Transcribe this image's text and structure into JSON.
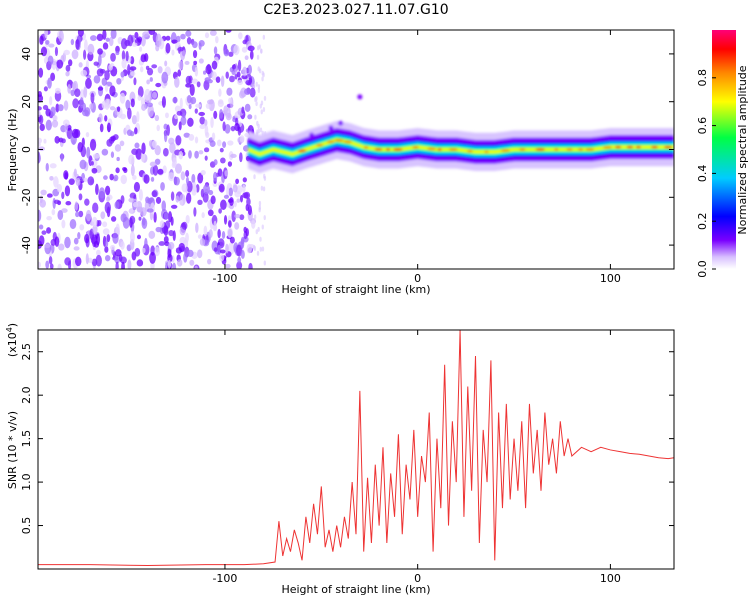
{
  "title": "C2E3.2023.027.11.07.G10",
  "chart_data": [
    {
      "type": "heatmap",
      "xlabel": "Height of straight line (km)",
      "ylabel": "Frequency (Hz)",
      "xlim": [
        -197,
        133
      ],
      "ylim": [
        -50,
        50
      ],
      "x_ticks": [
        -100,
        0,
        100
      ],
      "x_tick_labels": [
        "-100",
        "0",
        "100"
      ],
      "y_ticks": [
        -40,
        -20,
        0,
        20,
        40
      ],
      "y_tick_labels": [
        "-40",
        "-20",
        "0",
        "20",
        "40"
      ],
      "colorbar": {
        "label": "Normalized spectral amplitude",
        "range": [
          0,
          1
        ],
        "ticks": [
          0.0,
          0.2,
          0.4,
          0.6,
          0.8
        ],
        "tick_labels": [
          "0.0",
          "0.2",
          "0.4",
          "0.6",
          "0.8"
        ]
      },
      "ridge": {
        "x": [
          -88,
          -82,
          -75,
          -70,
          -65,
          -58,
          -50,
          -42,
          -35,
          -28,
          -20,
          -10,
          0,
          10,
          20,
          30,
          40,
          50,
          60,
          70,
          80,
          90,
          100,
          110,
          120,
          133
        ],
        "freq": [
          0,
          -2,
          0,
          -1,
          -2,
          0,
          2,
          4,
          3,
          1,
          0,
          0,
          1,
          0,
          0,
          -1,
          -1,
          0,
          0,
          0,
          0,
          0,
          1,
          1,
          1,
          1
        ]
      },
      "noise_region_x": [
        -197,
        -85
      ],
      "colors": [
        "#ffffff",
        "#e8d8ff",
        "#b088ff",
        "#6a00ff",
        "#0000ff",
        "#00ccff",
        "#00ff66",
        "#ffff00",
        "#ff8800",
        "#ff0000",
        "#ff0066"
      ]
    },
    {
      "type": "line",
      "xlabel": "Height of straight line (km)",
      "ylabel": "SNR (10 * v/v)",
      "y_scale_label": "(x10",
      "y_scale_exp": "4",
      "xlim": [
        -197,
        133
      ],
      "ylim": [
        0,
        2.75
      ],
      "x_ticks": [
        -100,
        0,
        100
      ],
      "x_tick_labels": [
        "-100",
        "0",
        "100"
      ],
      "y_ticks": [
        0.5,
        1.0,
        1.5,
        2.0,
        2.5
      ],
      "y_tick_labels": [
        "0.5",
        "1.0",
        "1.5",
        "2.0",
        "2.5"
      ],
      "color": "#ee3333",
      "series": [
        {
          "x": [
            -197,
            -170,
            -140,
            -110,
            -90,
            -80,
            -74,
            -72,
            -70,
            -68,
            -66,
            -64,
            -62,
            -60,
            -58,
            -56,
            -54,
            -52,
            -50,
            -48,
            -46,
            -44,
            -42,
            -40,
            -38,
            -36,
            -34,
            -32,
            -30,
            -28,
            -26,
            -24,
            -22,
            -20,
            -18,
            -16,
            -14,
            -12,
            -10,
            -8,
            -6,
            -4,
            -2,
            0,
            2,
            4,
            6,
            8,
            10,
            12,
            14,
            16,
            18,
            20,
            22,
            24,
            26,
            28,
            30,
            32,
            34,
            36,
            38,
            40,
            42,
            44,
            46,
            48,
            50,
            52,
            54,
            56,
            58,
            60,
            62,
            64,
            66,
            68,
            70,
            72,
            74,
            76,
            78,
            80,
            85,
            90,
            95,
            100,
            105,
            110,
            115,
            120,
            125,
            130,
            133
          ],
          "y": [
            0.05,
            0.05,
            0.04,
            0.05,
            0.05,
            0.06,
            0.08,
            0.55,
            0.15,
            0.35,
            0.2,
            0.45,
            0.3,
            0.1,
            0.6,
            0.3,
            0.75,
            0.4,
            0.95,
            0.25,
            0.45,
            0.2,
            0.5,
            0.25,
            0.6,
            0.35,
            1.0,
            0.4,
            2.05,
            0.2,
            1.05,
            0.3,
            1.2,
            0.5,
            1.4,
            0.3,
            1.1,
            0.6,
            1.55,
            0.4,
            1.2,
            0.8,
            1.6,
            0.6,
            1.3,
            1.0,
            1.8,
            0.2,
            1.5,
            0.7,
            2.35,
            0.5,
            1.7,
            1.0,
            2.75,
            0.6,
            2.1,
            0.9,
            2.45,
            0.3,
            1.6,
            1.0,
            2.4,
            0.1,
            1.8,
            0.7,
            1.9,
            0.8,
            1.5,
            0.9,
            1.7,
            0.7,
            1.9,
            1.1,
            1.6,
            0.9,
            1.8,
            1.2,
            1.5,
            1.1,
            1.7,
            1.3,
            1.5,
            1.3,
            1.4,
            1.35,
            1.4,
            1.37,
            1.35,
            1.33,
            1.32,
            1.3,
            1.28,
            1.27,
            1.28
          ]
        }
      ]
    }
  ]
}
